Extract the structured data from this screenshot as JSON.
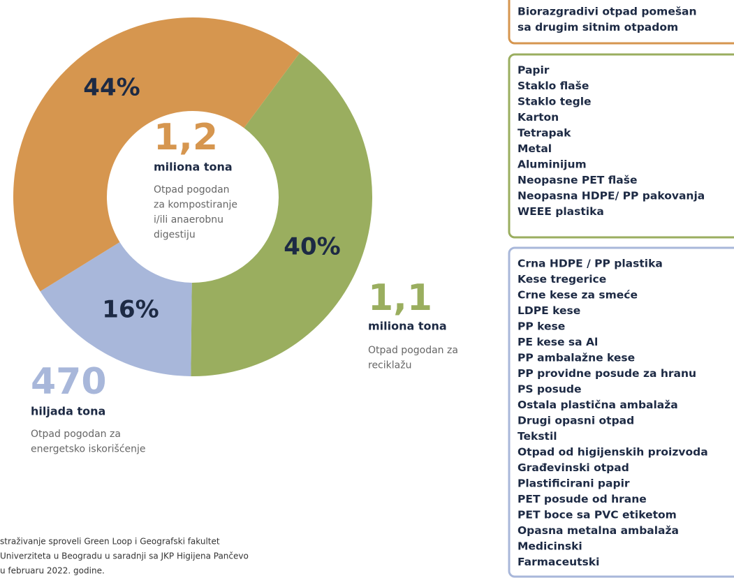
{
  "chart_data": {
    "type": "donut",
    "values": [
      44,
      40,
      16
    ],
    "value_labels": [
      "44%",
      "40%",
      "16%"
    ],
    "colors": [
      "#d6964f",
      "#9aae5f",
      "#a8b7da"
    ],
    "annotations": [
      {
        "amount": "1,2",
        "unit": "miliona tona",
        "lines": [
          "Otpad pogodan",
          "za kompostiranje",
          "i/ili anaerobnu",
          "digestiju"
        ]
      },
      {
        "amount": "1,1",
        "unit": "miliona tona",
        "lines": [
          "Otpad pogodan za",
          "reciklažu"
        ]
      },
      {
        "amount": "470",
        "unit": "hiljada tona",
        "lines": [
          "Otpad pogodan za",
          "energetsko iskorišćenje"
        ]
      }
    ],
    "groups": [
      {
        "items": [
          "Biorazgradivi otpad pomešan",
          "sa drugim sitnim otpadom"
        ]
      },
      {
        "items": [
          "Papir",
          "Staklo flaše",
          "Staklo tegle",
          "Karton",
          "Tetrapak",
          "Metal",
          "Aluminijum",
          "Neopasne PET flaše",
          "Neopasna HDPE/ PP pakovanja",
          "WEEE plastika"
        ]
      },
      {
        "items": [
          "Crna HDPE / PP plastika",
          "Kese tregerice",
          "Crne kese za smeće",
          "LDPE kese",
          "PP kese",
          "PE kese sa Al",
          "PP ambalažne kese",
          "PP providne posude za hranu",
          "PS posude",
          "Ostala plastična ambalaža",
          "Drugi opasni otpad",
          "Tekstil",
          "Otpad od higijenskih proizvoda",
          "Građevinski otpad",
          "Plastificirani papir",
          "PET posude od hrane",
          "PET boce sa PVC etiketom",
          "Opasna metalna ambalaža",
          "Medicinski",
          "Farmaceutski"
        ]
      }
    ],
    "footnote": [
      "straživanje sproveli Green Loop i Geografski fakultet",
      "Univerziteta u Beogradu u saradnji sa JKP Higijena Pančevo",
      "u februaru 2022. godine."
    ]
  }
}
